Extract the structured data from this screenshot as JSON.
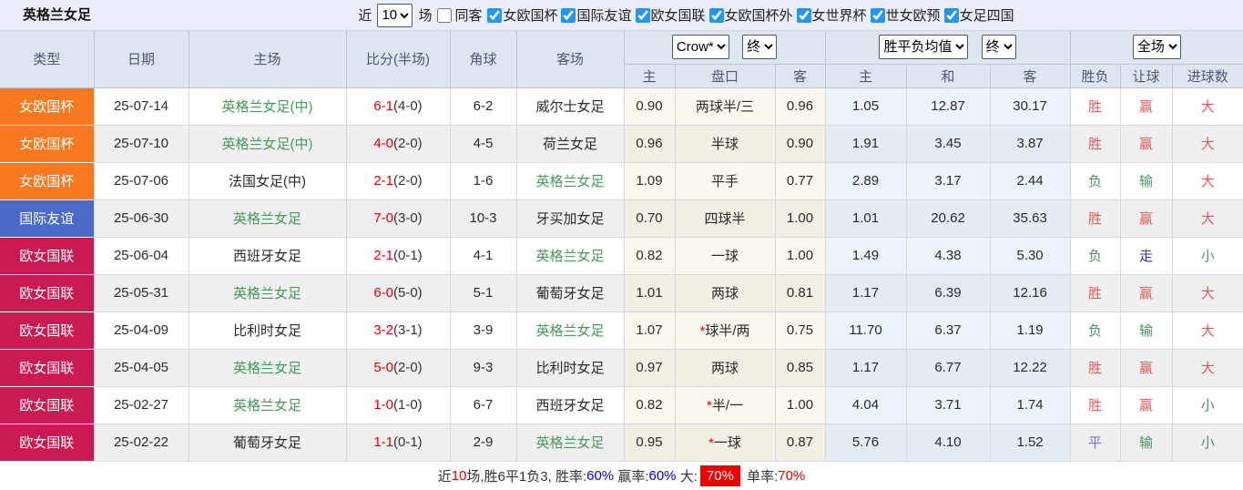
{
  "title": "英格兰女足",
  "topbar": {
    "near_label": "近",
    "near_value": "10",
    "games_label": "场",
    "same_away_label": "同客",
    "same_away_checked": false,
    "filters": [
      "女欧国杯",
      "国际友谊",
      "欧女国联",
      "女欧国杯外",
      "女世界杯",
      "世女欧预",
      "女足四国"
    ],
    "checkbox_accent_color": "#2196f3"
  },
  "table": {
    "columns": {
      "type": "类型",
      "date": "日期",
      "home": "主场",
      "score": "比分(半场)",
      "corner": "角球",
      "away": "客场"
    },
    "selects": {
      "company": "Crow*",
      "company_state": "终",
      "avg": "胜平负均值",
      "avg_state": "终",
      "scope": "全场"
    },
    "subheaders": [
      "主",
      "盘口",
      "客",
      "主",
      "和",
      "客",
      "胜负",
      "让球",
      "进球数"
    ],
    "type_colors": {
      "orange": "#f8791e",
      "blue": "#4b69c6",
      "crimson": "#ca1a52"
    },
    "rows": [
      {
        "type": "女欧国杯",
        "type_color": "orange",
        "date": "25-07-14",
        "home": "英格兰女足(中)",
        "home_green": true,
        "score": "6-1",
        "half": "(4-0)",
        "corner": "6-2",
        "away": "威尔士女足",
        "away_green": false,
        "odds_home": "0.90",
        "handicap_star": "",
        "handicap": "两球半/三",
        "odds_away": "0.96",
        "avg_home": "1.05",
        "avg_draw": "12.87",
        "avg_away": "30.17",
        "wdl": "胜",
        "wdl_color": "red",
        "let": "赢",
        "let_color": "red",
        "goals": "大",
        "goals_color": "red"
      },
      {
        "type": "女欧国杯",
        "type_color": "orange",
        "date": "25-07-10",
        "home": "英格兰女足(中)",
        "home_green": true,
        "score": "4-0",
        "half": "(2-0)",
        "corner": "4-5",
        "away": "荷兰女足",
        "away_green": false,
        "odds_home": "0.96",
        "handicap_star": "",
        "handicap": "半球",
        "odds_away": "0.90",
        "avg_home": "1.91",
        "avg_draw": "3.45",
        "avg_away": "3.87",
        "wdl": "胜",
        "wdl_color": "red",
        "let": "赢",
        "let_color": "red",
        "goals": "大",
        "goals_color": "red"
      },
      {
        "type": "女欧国杯",
        "type_color": "orange",
        "date": "25-07-06",
        "home": "法国女足(中)",
        "home_green": false,
        "score": "2-1",
        "half": "(2-0)",
        "corner": "1-6",
        "away": "英格兰女足",
        "away_green": true,
        "odds_home": "1.09",
        "handicap_star": "",
        "handicap": "平手",
        "odds_away": "0.77",
        "avg_home": "2.89",
        "avg_draw": "3.17",
        "avg_away": "2.44",
        "wdl": "负",
        "wdl_color": "green",
        "let": "输",
        "let_color": "green",
        "goals": "大",
        "goals_color": "red"
      },
      {
        "type": "国际友谊",
        "type_color": "blue",
        "date": "25-06-30",
        "home": "英格兰女足",
        "home_green": true,
        "score": "7-0",
        "half": "(3-0)",
        "corner": "10-3",
        "away": "牙买加女足",
        "away_green": false,
        "odds_home": "0.70",
        "handicap_star": "",
        "handicap": "四球半",
        "odds_away": "1.00",
        "avg_home": "1.01",
        "avg_draw": "20.62",
        "avg_away": "35.63",
        "wdl": "胜",
        "wdl_color": "red",
        "let": "赢",
        "let_color": "red",
        "goals": "大",
        "goals_color": "red"
      },
      {
        "type": "欧女国联",
        "type_color": "crimson",
        "date": "25-06-04",
        "home": "西班牙女足",
        "home_green": false,
        "score": "2-1",
        "half": "(0-1)",
        "corner": "4-1",
        "away": "英格兰女足",
        "away_green": true,
        "odds_home": "0.82",
        "handicap_star": "",
        "handicap": "一球",
        "odds_away": "1.00",
        "avg_home": "1.49",
        "avg_draw": "4.38",
        "avg_away": "5.30",
        "wdl": "负",
        "wdl_color": "green",
        "let": "走",
        "let_color": "blue",
        "goals": "小",
        "goals_color": "green"
      },
      {
        "type": "欧女国联",
        "type_color": "crimson",
        "date": "25-05-31",
        "home": "英格兰女足",
        "home_green": true,
        "score": "6-0",
        "half": "(5-0)",
        "corner": "5-1",
        "away": "葡萄牙女足",
        "away_green": false,
        "odds_home": "1.01",
        "handicap_star": "",
        "handicap": "两球",
        "odds_away": "0.81",
        "avg_home": "1.17",
        "avg_draw": "6.39",
        "avg_away": "12.16",
        "wdl": "胜",
        "wdl_color": "red",
        "let": "赢",
        "let_color": "red",
        "goals": "大",
        "goals_color": "red"
      },
      {
        "type": "欧女国联",
        "type_color": "crimson",
        "date": "25-04-09",
        "home": "比利时女足",
        "home_green": false,
        "score": "3-2",
        "half": "(3-1)",
        "corner": "3-9",
        "away": "英格兰女足",
        "away_green": true,
        "odds_home": "1.07",
        "handicap_star": "*",
        "handicap": "球半/两",
        "odds_away": "0.75",
        "avg_home": "11.70",
        "avg_draw": "6.37",
        "avg_away": "1.19",
        "wdl": "负",
        "wdl_color": "green",
        "let": "输",
        "let_color": "green",
        "goals": "大",
        "goals_color": "red"
      },
      {
        "type": "欧女国联",
        "type_color": "crimson",
        "date": "25-04-05",
        "home": "英格兰女足",
        "home_green": true,
        "score": "5-0",
        "half": "(2-0)",
        "corner": "9-3",
        "away": "比利时女足",
        "away_green": false,
        "odds_home": "0.97",
        "handicap_star": "",
        "handicap": "两球",
        "odds_away": "0.85",
        "avg_home": "1.17",
        "avg_draw": "6.77",
        "avg_away": "12.22",
        "wdl": "胜",
        "wdl_color": "red",
        "let": "赢",
        "let_color": "red",
        "goals": "大",
        "goals_color": "red"
      },
      {
        "type": "欧女国联",
        "type_color": "crimson",
        "date": "25-02-27",
        "home": "英格兰女足",
        "home_green": true,
        "score": "1-0",
        "half": "(1-0)",
        "corner": "6-7",
        "away": "西班牙女足",
        "away_green": false,
        "odds_home": "0.82",
        "handicap_star": "*",
        "handicap": "半/一",
        "odds_away": "1.00",
        "avg_home": "4.04",
        "avg_draw": "3.71",
        "avg_away": "1.74",
        "wdl": "胜",
        "wdl_color": "red",
        "let": "赢",
        "let_color": "red",
        "goals": "小",
        "goals_color": "green"
      },
      {
        "type": "欧女国联",
        "type_color": "crimson",
        "date": "25-02-22",
        "home": "葡萄牙女足",
        "home_green": false,
        "score": "1-1",
        "half": "(0-1)",
        "corner": "2-9",
        "away": "英格兰女足",
        "away_green": true,
        "odds_home": "0.95",
        "handicap_star": "*",
        "handicap": "一球",
        "odds_away": "0.87",
        "avg_home": "5.76",
        "avg_draw": "4.10",
        "avg_away": "1.52",
        "wdl": "平",
        "wdl_color": "purple",
        "let": "输",
        "let_color": "green",
        "goals": "小",
        "goals_color": "green"
      }
    ]
  },
  "footer": {
    "segments": [
      {
        "text": "近",
        "style": "dark"
      },
      {
        "text": "10",
        "style": "red"
      },
      {
        "text": "场,胜6平1负3, 胜率:",
        "style": "dark"
      },
      {
        "text": "60%",
        "style": "blue"
      },
      {
        "text": " 赢率:",
        "style": "dark"
      },
      {
        "text": "60%",
        "style": "blue"
      },
      {
        "text": " 大:",
        "style": "dark"
      },
      {
        "text": "70%",
        "style": "red-badge"
      },
      {
        "text": " 单率:",
        "style": "dark"
      },
      {
        "text": "70%",
        "style": "red"
      }
    ]
  }
}
